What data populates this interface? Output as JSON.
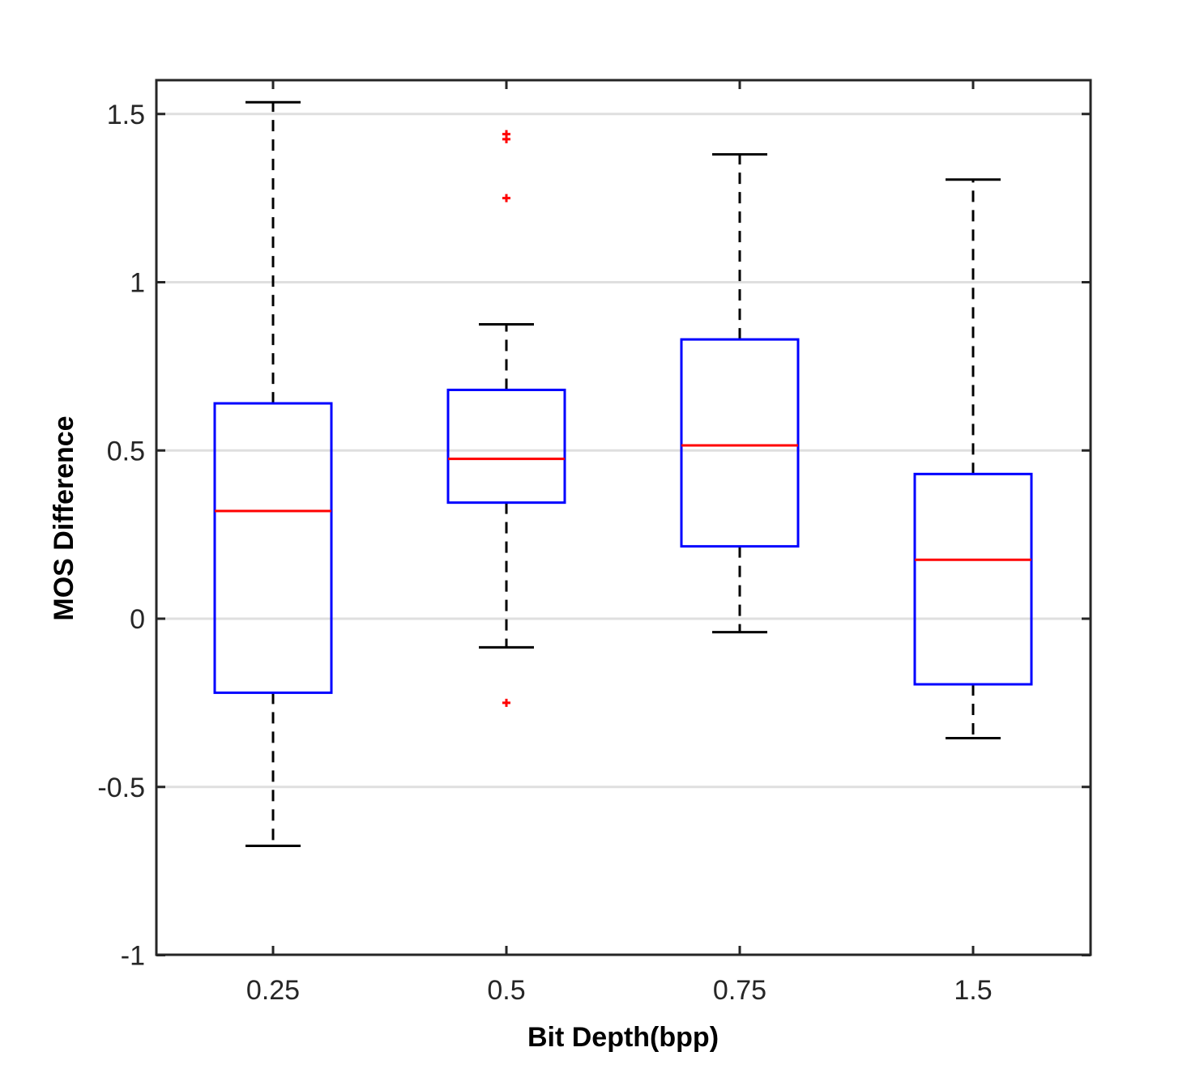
{
  "chart_data": {
    "type": "boxplot",
    "title": "",
    "xlabel": "Bit Depth(bpp)",
    "ylabel": "MOS Difference",
    "ylim": [
      -1,
      1.6
    ],
    "yticks": [
      -1,
      -0.5,
      0,
      0.5,
      1,
      1.5
    ],
    "ytick_labels": [
      "-1",
      "-0.5",
      "0",
      "0.5",
      "1",
      "1.5"
    ],
    "grid": "horizontal",
    "categories": [
      "0.25",
      "0.5",
      "0.75",
      "1.5"
    ],
    "boxes": [
      {
        "category": "0.25",
        "whisker_low": -0.675,
        "q1": -0.22,
        "median": 0.32,
        "q3": 0.64,
        "whisker_high": 1.535,
        "outliers": []
      },
      {
        "category": "0.5",
        "whisker_low": -0.085,
        "q1": 0.345,
        "median": 0.475,
        "q3": 0.68,
        "whisker_high": 0.875,
        "outliers": [
          1.44,
          1.425,
          1.25,
          -0.25
        ]
      },
      {
        "category": "0.75",
        "whisker_low": -0.04,
        "q1": 0.215,
        "median": 0.515,
        "q3": 0.83,
        "whisker_high": 1.38,
        "outliers": []
      },
      {
        "category": "1.5",
        "whisker_low": -0.355,
        "q1": -0.195,
        "median": 0.175,
        "q3": 0.43,
        "whisker_high": 1.305,
        "outliers": []
      }
    ],
    "colors": {
      "box": "#0000ff",
      "median": "#ff0000",
      "outlier": "#ff0000",
      "whisker": "#000000",
      "grid": "#dfdfdf",
      "axis": "#262626"
    }
  }
}
